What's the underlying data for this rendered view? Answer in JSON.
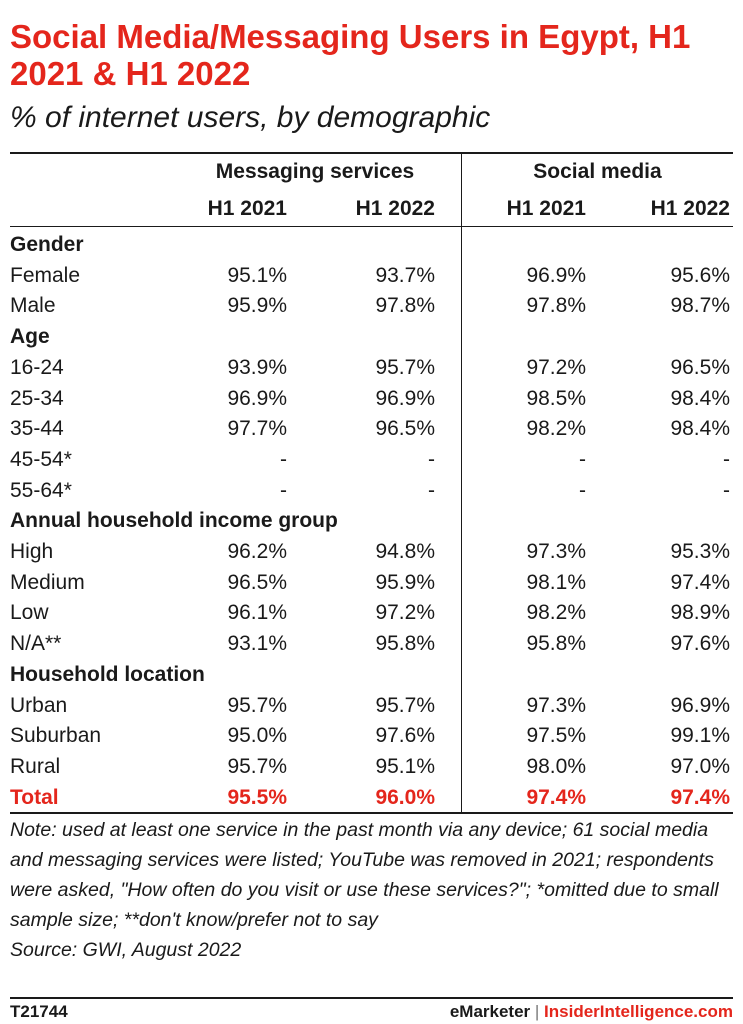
{
  "chart_data": {
    "type": "table",
    "title": "Social Media/Messaging Users in Egypt, H1 2021 & H1 2022",
    "subtitle": "% of internet users, by demographic",
    "column_groups": [
      "Messaging services",
      "Social media"
    ],
    "columns": [
      "H1 2021",
      "H1 2022",
      "H1 2021",
      "H1 2022"
    ],
    "rows": [
      {
        "label": "Gender",
        "section": true,
        "values": [
          "",
          "",
          "",
          ""
        ]
      },
      {
        "label": "Female",
        "values": [
          "95.1%",
          "93.7%",
          "96.9%",
          "95.6%"
        ]
      },
      {
        "label": "Male",
        "values": [
          "95.9%",
          "97.8%",
          "97.8%",
          "98.7%"
        ]
      },
      {
        "label": "Age",
        "section": true,
        "values": [
          "",
          "",
          "",
          ""
        ]
      },
      {
        "label": "16-24",
        "values": [
          "93.9%",
          "95.7%",
          "97.2%",
          "96.5%"
        ]
      },
      {
        "label": "25-34",
        "values": [
          "96.9%",
          "96.9%",
          "98.5%",
          "98.4%"
        ]
      },
      {
        "label": "35-44",
        "values": [
          "97.7%",
          "96.5%",
          "98.2%",
          "98.4%"
        ]
      },
      {
        "label": "45-54*",
        "values": [
          "-",
          "-",
          "-",
          "-"
        ]
      },
      {
        "label": "55-64*",
        "values": [
          "-",
          "-",
          "-",
          "-"
        ]
      },
      {
        "label": "Annual household income group",
        "section": true,
        "values": [
          "",
          "",
          "",
          ""
        ]
      },
      {
        "label": "High",
        "values": [
          "96.2%",
          "94.8%",
          "97.3%",
          "95.3%"
        ]
      },
      {
        "label": "Medium",
        "values": [
          "96.5%",
          "95.9%",
          "98.1%",
          "97.4%"
        ]
      },
      {
        "label": "Low",
        "values": [
          "96.1%",
          "97.2%",
          "98.2%",
          "98.9%"
        ]
      },
      {
        "label": "N/A**",
        "values": [
          "93.1%",
          "95.8%",
          "95.8%",
          "97.6%"
        ]
      },
      {
        "label": "Household location",
        "section": true,
        "values": [
          "",
          "",
          "",
          ""
        ]
      },
      {
        "label": "Urban",
        "values": [
          "95.7%",
          "95.7%",
          "97.3%",
          "96.9%"
        ]
      },
      {
        "label": "Suburban",
        "values": [
          "95.0%",
          "97.6%",
          "97.5%",
          "99.1%"
        ]
      },
      {
        "label": "Rural",
        "values": [
          "95.7%",
          "95.1%",
          "98.0%",
          "97.0%"
        ]
      },
      {
        "label": "Total",
        "total": true,
        "values": [
          "95.5%",
          "96.0%",
          "97.4%",
          "97.4%"
        ]
      }
    ],
    "note": "Note: used at least one service in the past month via any device; 61 social media and messaging services were listed; YouTube was removed in 2021; respondents were asked, \"How often do you visit or use these services?\"; *omitted due to small sample size; **don't know/prefer not to say",
    "source": "Source: GWI, August 2022"
  },
  "footer": {
    "chart_id": "T21744",
    "brand_left": "eMarketer",
    "separator": "|",
    "brand_right": "InsiderIntelligence.com"
  },
  "colors": {
    "accent": "#e4261c",
    "text": "#1a1a1a"
  }
}
